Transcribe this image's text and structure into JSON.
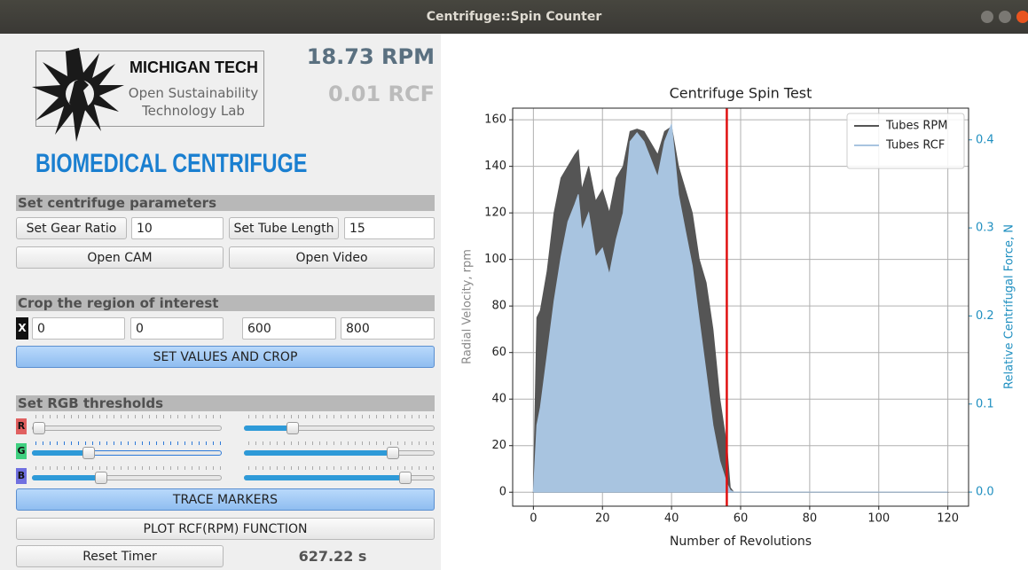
{
  "title_bar": {
    "title": "Centrifuge::Spin Counter"
  },
  "panel": {
    "rpm_readout": "18.73 RPM",
    "rcf_readout": "0.01 RCF",
    "logo": {
      "name": "MICHIGAN TECH",
      "line1": "Open Sustainability",
      "line2": "Technology Lab"
    },
    "app_title": "BIOMEDICAL CENTRIFUGE",
    "params": {
      "header": "Set centrifuge parameters",
      "gear_button": "Set Gear Ratio",
      "gear_value": "10",
      "tube_button": "Set Tube Length",
      "tube_value": "15",
      "cam_button": "Open CAM",
      "video_button": "Open Video"
    },
    "crop": {
      "header": "Crop the region of interest",
      "x_label": "X",
      "fields": [
        "0",
        "0",
        "600",
        "800"
      ],
      "button": "SET VALUES AND CROP"
    },
    "rgb": {
      "header": "Set RGB thresholds",
      "channels": [
        "R",
        "G",
        "B"
      ]
    },
    "trace_button": "TRACE MARKERS",
    "plot_button": "PLOT RCF(RPM) FUNCTION",
    "reset_button": "Reset Timer",
    "timer": "627.22 s"
  },
  "chart_data": {
    "type": "area",
    "title": "Centrifuge Spin Test",
    "x_label": "Number of Revolutions",
    "y_label": "Radial Velocity, rpm",
    "y2_label": "Relative Centrifugal Force, N",
    "x": [
      0,
      1,
      2,
      4,
      6,
      8,
      10,
      12,
      13,
      14,
      16,
      18,
      20,
      22,
      24,
      26,
      28,
      30,
      32,
      34,
      36,
      38,
      40,
      42,
      44,
      46,
      48,
      50,
      52,
      54,
      56,
      57,
      58,
      120
    ],
    "series": [
      {
        "name": "Tubes RPM",
        "color": "#555555",
        "axis": "y",
        "values": [
          0,
          75,
          78,
          95,
          120,
          135,
          140,
          145,
          147,
          130,
          140,
          125,
          130,
          120,
          135,
          140,
          155,
          156,
          155,
          150,
          145,
          155,
          157,
          140,
          130,
          120,
          100,
          90,
          70,
          40,
          20,
          2,
          0,
          0
        ]
      },
      {
        "name": "Tubes RCF",
        "color": "#a8c4e0",
        "axis": "y2",
        "values": [
          0,
          0.076,
          0.096,
          0.156,
          0.217,
          0.267,
          0.307,
          0.327,
          0.338,
          0.297,
          0.317,
          0.267,
          0.277,
          0.247,
          0.287,
          0.317,
          0.398,
          0.408,
          0.398,
          0.378,
          0.358,
          0.398,
          0.418,
          0.338,
          0.297,
          0.257,
          0.196,
          0.136,
          0.076,
          0.035,
          0.01,
          0.002,
          0,
          0
        ]
      }
    ],
    "xlim": [
      -6,
      126
    ],
    "xticks": [
      0,
      20,
      40,
      60,
      80,
      100,
      120
    ],
    "ylim": [
      -6,
      165
    ],
    "yticks": [
      0,
      20,
      40,
      60,
      80,
      100,
      120,
      140,
      160
    ],
    "y2lim": [
      -0.016,
      0.436
    ],
    "y2ticks": [
      {
        "value": 0,
        "label": "0.0"
      },
      {
        "value": 0.1,
        "label": "0.1"
      },
      {
        "value": 0.2,
        "label": "0.2"
      },
      {
        "value": 0.3,
        "label": "0.3"
      },
      {
        "value": 0.4,
        "label": "0.4"
      }
    ],
    "y2_color": "#1f8fc0",
    "vline": {
      "x": 56,
      "color": "#e01010"
    },
    "grid": true,
    "legend": "upper right"
  }
}
